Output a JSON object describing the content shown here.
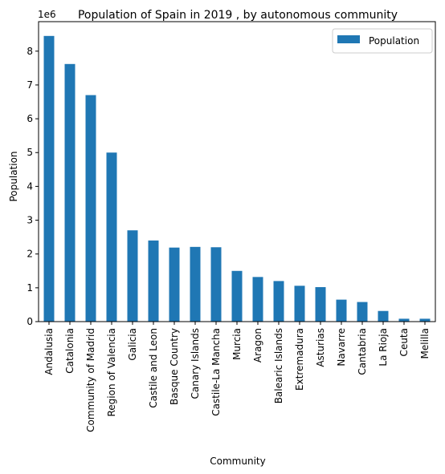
{
  "chart_data": {
    "type": "bar",
    "title": "Population of Spain in 2019 , by autonomous community",
    "xlabel": "Community",
    "ylabel": "Population",
    "offset_text": "1e6",
    "categories": [
      "Andalusia",
      "Catalonia",
      "Community of Madrid",
      "Region of Valencia",
      "Galicia",
      "Castile and Leon",
      "Basque Country",
      "Canary Islands",
      "Castile-La Mancha",
      "Murcia",
      "Aragon",
      "Balearic Islands",
      "Extremadura",
      "Asturias",
      "Navarre",
      "Cantabria",
      "La Rioja",
      "Ceuta",
      "Melilla"
    ],
    "series": [
      {
        "name": "Population",
        "color": "#1f77b4",
        "values": [
          8450000,
          7620000,
          6700000,
          5000000,
          2700000,
          2400000,
          2190000,
          2210000,
          2200000,
          1500000,
          1320000,
          1200000,
          1060000,
          1020000,
          650000,
          580000,
          315000,
          85000,
          85000
        ]
      }
    ],
    "ylim": [
      0,
      8872500
    ],
    "yticks": [
      0,
      1,
      2,
      3,
      4,
      5,
      6,
      7,
      8
    ],
    "grid": false,
    "legend_position": "top-right"
  }
}
